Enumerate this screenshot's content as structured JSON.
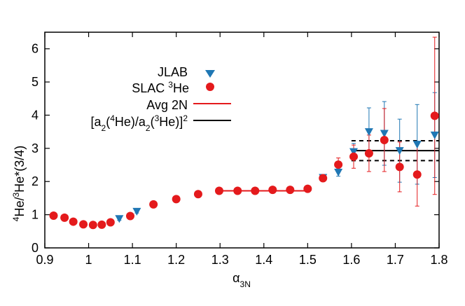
{
  "chart_data": {
    "type": "scatter",
    "xlabel": "α3N",
    "ylabel": "4He/3He*(3/4)",
    "xlim": [
      0.9,
      1.8
    ],
    "ylim": [
      0,
      6.5
    ],
    "x_ticks": [
      "0.9",
      "1",
      "1.1",
      "1.2",
      "1.3",
      "1.4",
      "1.5",
      "1.6",
      "1.7",
      "1.8"
    ],
    "y_ticks": [
      "0",
      "1",
      "2",
      "3",
      "4",
      "5",
      "6"
    ],
    "legend_position": "upper-left",
    "grid": false,
    "colors": {
      "jlab": "#1f77b4",
      "slac": "#e41a1c",
      "avg2n": "#e41a1c",
      "ratio": "#000000"
    },
    "legend": [
      {
        "label": "JLAB",
        "marker": "triangle-down",
        "color": "#1f77b4"
      },
      {
        "label": "SLAC 3He",
        "marker": "circle",
        "color": "#e41a1c"
      },
      {
        "label": "Avg 2N",
        "marker": "line",
        "color": "#e41a1c"
      },
      {
        "label": "[a2(4He)/a2(3He)]2",
        "marker": "line",
        "color": "#000000"
      }
    ],
    "series": [
      {
        "name": "JLAB",
        "marker": "triangle-down",
        "points": [
          {
            "x": 1.07,
            "y": 0.88,
            "err": 0.05
          },
          {
            "x": 1.11,
            "y": 1.1,
            "err": 0.05
          },
          {
            "x": 1.535,
            "y": 2.12,
            "err": 0.08
          },
          {
            "x": 1.57,
            "y": 2.28,
            "err": 0.12
          },
          {
            "x": 1.605,
            "y": 2.9,
            "err": 0.25
          },
          {
            "x": 1.64,
            "y": 3.5,
            "err": 0.72
          },
          {
            "x": 1.675,
            "y": 3.45,
            "err": 0.96
          },
          {
            "x": 1.71,
            "y": 2.93,
            "err": 0.95
          },
          {
            "x": 1.75,
            "y": 3.12,
            "err": 1.2
          },
          {
            "x": 1.79,
            "y": 3.4,
            "err": 1.28
          }
        ]
      },
      {
        "name": "SLAC 3He",
        "marker": "circle",
        "points": [
          {
            "x": 0.92,
            "y": 0.97,
            "err": 0.03
          },
          {
            "x": 0.945,
            "y": 0.91,
            "err": 0.03
          },
          {
            "x": 0.965,
            "y": 0.79,
            "err": 0.03
          },
          {
            "x": 0.988,
            "y": 0.71,
            "err": 0.03
          },
          {
            "x": 1.01,
            "y": 0.69,
            "err": 0.03
          },
          {
            "x": 1.03,
            "y": 0.7,
            "err": 0.03
          },
          {
            "x": 1.05,
            "y": 0.77,
            "err": 0.03
          },
          {
            "x": 1.095,
            "y": 0.96,
            "err": 0.04
          },
          {
            "x": 1.148,
            "y": 1.31,
            "err": 0.05
          },
          {
            "x": 1.2,
            "y": 1.47,
            "err": 0.05
          },
          {
            "x": 1.25,
            "y": 1.62,
            "err": 0.05
          },
          {
            "x": 1.298,
            "y": 1.72,
            "err": 0.05
          },
          {
            "x": 1.34,
            "y": 1.72,
            "err": 0.05
          },
          {
            "x": 1.38,
            "y": 1.72,
            "err": 0.05
          },
          {
            "x": 1.42,
            "y": 1.75,
            "err": 0.05
          },
          {
            "x": 1.46,
            "y": 1.75,
            "err": 0.05
          },
          {
            "x": 1.5,
            "y": 1.78,
            "err": 0.05
          },
          {
            "x": 1.535,
            "y": 2.1,
            "err": 0.1
          },
          {
            "x": 1.57,
            "y": 2.51,
            "err": 0.2
          },
          {
            "x": 1.605,
            "y": 2.75,
            "err": 0.35
          },
          {
            "x": 1.64,
            "y": 2.85,
            "err": 0.55
          },
          {
            "x": 1.675,
            "y": 3.25,
            "err": 0.95
          },
          {
            "x": 1.71,
            "y": 2.44,
            "err": 0.75
          },
          {
            "x": 1.75,
            "y": 2.21,
            "err": 0.95
          },
          {
            "x": 1.79,
            "y": 3.98,
            "err": 2.37
          }
        ]
      }
    ],
    "avg_2n": {
      "x_range": [
        1.3,
        1.5
      ],
      "y": 1.72
    },
    "ratio_band": {
      "x_range": [
        1.6,
        1.8
      ],
      "y": 2.93,
      "low": 2.63,
      "high": 3.23
    }
  }
}
